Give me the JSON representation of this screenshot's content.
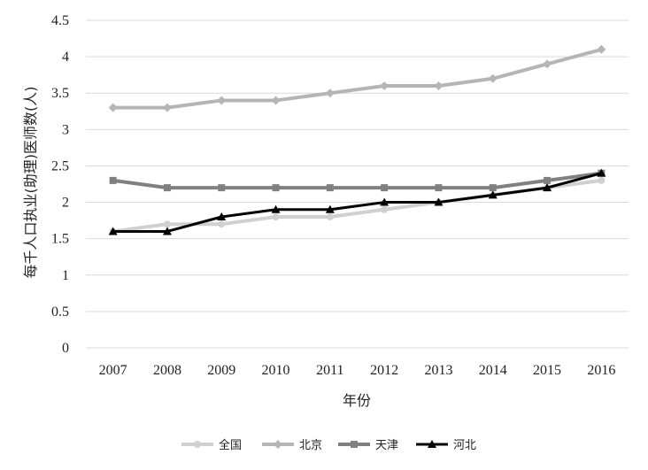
{
  "chart_data": {
    "type": "line",
    "title": "",
    "xlabel": "年份",
    "ylabel": "每千人口执业(助理)医师数(人)",
    "categories": [
      "2007",
      "2008",
      "2009",
      "2010",
      "2011",
      "2012",
      "2013",
      "2014",
      "2015",
      "2016"
    ],
    "ylim": [
      0,
      4.5
    ],
    "yticks": [
      "0",
      "0.5",
      "1",
      "1.5",
      "2",
      "2.5",
      "3",
      "3.5",
      "4",
      "4.5"
    ],
    "grid": true,
    "legend_position": "bottom",
    "series": [
      {
        "name": "全国",
        "values": [
          1.6,
          1.7,
          1.7,
          1.8,
          1.8,
          1.9,
          2.0,
          2.1,
          2.2,
          2.3
        ],
        "color": "#d0d0d0",
        "marker": "circle",
        "stroke_width": 4
      },
      {
        "name": "北京",
        "values": [
          3.3,
          3.3,
          3.4,
          3.4,
          3.5,
          3.6,
          3.6,
          3.7,
          3.9,
          4.1
        ],
        "color": "#b5b5b5",
        "marker": "diamond",
        "stroke_width": 4
      },
      {
        "name": "天津",
        "values": [
          2.3,
          2.2,
          2.2,
          2.2,
          2.2,
          2.2,
          2.2,
          2.2,
          2.3,
          2.4
        ],
        "color": "#808080",
        "marker": "square",
        "stroke_width": 4
      },
      {
        "name": "河北",
        "values": [
          1.6,
          1.6,
          1.8,
          1.9,
          1.9,
          2.0,
          2.0,
          2.1,
          2.2,
          2.4
        ],
        "color": "#000000",
        "marker": "triangle",
        "stroke_width": 3
      }
    ]
  }
}
